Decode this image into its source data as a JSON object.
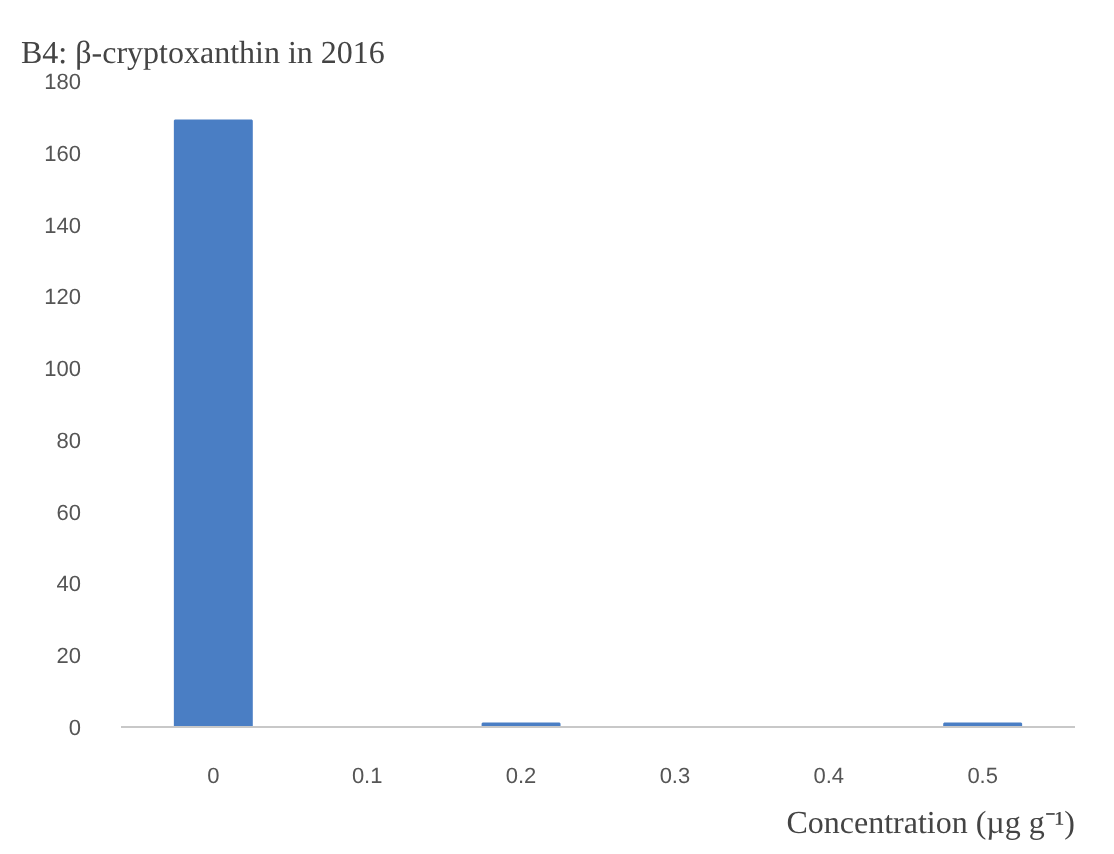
{
  "chart_data": {
    "type": "bar",
    "title": "B4: β-cryptoxanthin in 2016",
    "xlabel": "Concentration (µg g⁻¹)",
    "categories": [
      "0",
      "0.1",
      "0.2",
      "0.3",
      "0.4",
      "0.5"
    ],
    "values": [
      169,
      0,
      1,
      0,
      0,
      1
    ],
    "color": "#4a7ec4",
    "ylim": [
      0,
      180
    ],
    "yticks": [
      0,
      20,
      40,
      60,
      80,
      100,
      120,
      140,
      160,
      180
    ],
    "grid": false
  }
}
